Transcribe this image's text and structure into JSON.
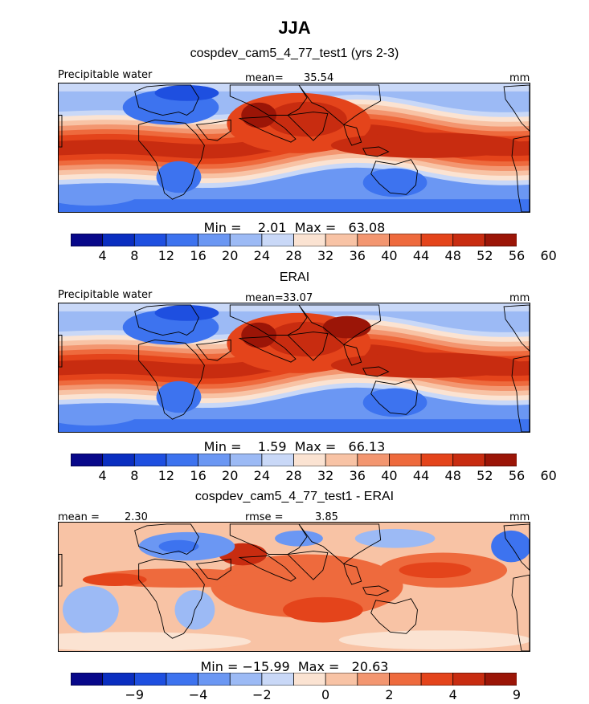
{
  "title": "JJA",
  "panel1": {
    "title": "cospdev_cam5_4_77_test1 (yrs 2-3)",
    "left_label": "Precipitable water",
    "mean_label": "mean=",
    "mean_value": "35.54",
    "units": "mm",
    "stats": "Min =    2.01  Max =   63.08"
  },
  "panel2": {
    "title": "ERAI",
    "left_label": "Precipitable water",
    "mean_label": "mean=",
    "mean_value": "33.07",
    "units": "mm",
    "stats": "Min =    1.59  Max =   66.13"
  },
  "panel3": {
    "title": "cospdev_cam5_4_77_test1 - ERAI",
    "mean_label": "mean =",
    "mean_value": "2.30",
    "rmse_label": "rmse =",
    "rmse_value": "3.85",
    "units": "mm",
    "stats": "Min = −15.99  Max =   20.63"
  },
  "colors": {
    "field_scale": [
      "#08088a",
      "#0a2ec0",
      "#1e4fe0",
      "#3d73ef",
      "#6b97f3",
      "#9cbaf5",
      "#c9d8f7",
      "#fbe3d2",
      "#f8c3a5",
      "#f39670",
      "#ee6a3d",
      "#e4441b",
      "#c82c10",
      "#9b1507"
    ],
    "diff_scale": [
      "#08088a",
      "#0a2ec0",
      "#1e4fe0",
      "#3d73ef",
      "#6b97f3",
      "#9cbaf5",
      "#c9d8f7",
      "#fbe3d2",
      "#f8c3a5",
      "#f39670",
      "#ee6a3d",
      "#e4441b",
      "#c82c10",
      "#9b1507"
    ],
    "land_outline": "#000000"
  },
  "chart_data": [
    {
      "type": "heatmap",
      "title": "cospdev_cam5_4_77_test1 (yrs 2-3)",
      "variable": "Precipitable water",
      "units": "mm",
      "mean": 35.54,
      "min": 2.01,
      "max": 63.08,
      "contour_levels": [
        4,
        8,
        12,
        16,
        20,
        24,
        28,
        32,
        36,
        40,
        44,
        48,
        52,
        56,
        60
      ],
      "colorbar_labels": [
        "4",
        "8",
        "12",
        "16",
        "20",
        "24",
        "28",
        "32",
        "36",
        "40",
        "44",
        "48",
        "52",
        "56",
        "60"
      ]
    },
    {
      "type": "heatmap",
      "title": "ERAI",
      "variable": "Precipitable water",
      "units": "mm",
      "mean": 33.07,
      "min": 1.59,
      "max": 66.13,
      "contour_levels": [
        4,
        8,
        12,
        16,
        20,
        24,
        28,
        32,
        36,
        40,
        44,
        48,
        52,
        56,
        60
      ],
      "colorbar_labels": [
        "4",
        "8",
        "12",
        "16",
        "20",
        "24",
        "28",
        "32",
        "36",
        "40",
        "44",
        "48",
        "52",
        "56",
        "60"
      ]
    },
    {
      "type": "heatmap",
      "title": "cospdev_cam5_4_77_test1 - ERAI",
      "units": "mm",
      "mean": 2.3,
      "rmse": 3.85,
      "min": -15.99,
      "max": 20.63,
      "contour_levels": [
        -12,
        -9,
        -6,
        -4,
        -3,
        -2,
        -1,
        0,
        1,
        2,
        3,
        4,
        6,
        9,
        12
      ],
      "colorbar_labels": [
        "−9",
        "−4",
        "−2",
        "0",
        "2",
        "4",
        "9"
      ]
    }
  ]
}
